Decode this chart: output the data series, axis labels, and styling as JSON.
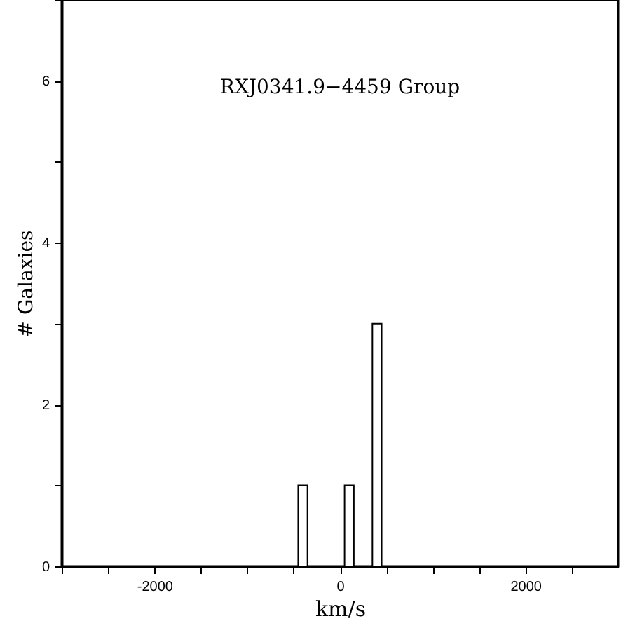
{
  "chart_data": {
    "type": "histogram",
    "title": "RXJ0341.9−4459 Group",
    "xlabel": "km/s",
    "ylabel": "# Galaxies",
    "bins": [
      -450,
      -350,
      -250,
      -150,
      -50,
      50,
      150,
      250,
      350,
      450
    ],
    "values": [
      1,
      0,
      0,
      0,
      0,
      1,
      0,
      0,
      3
    ],
    "color": "#ffffff",
    "xlim": [
      -3000,
      3000
    ],
    "xticks": [
      {
        "value": -3000,
        "label": null
      },
      {
        "value": -2500,
        "label": null
      },
      -2000,
      {
        "value": -1500,
        "label": null
      },
      {
        "value": -1000,
        "label": null
      },
      {
        "value": -500,
        "label": null
      },
      0,
      {
        "value": 500,
        "label": null
      },
      {
        "value": 1000,
        "label": null
      },
      {
        "value": 1500,
        "label": null
      },
      2000,
      {
        "value": 2500,
        "label": null
      }
    ],
    "ylim": [
      0,
      7
    ],
    "yticks": [
      0,
      {
        "value": 1,
        "label": null
      },
      2,
      {
        "value": 3,
        "label": null
      },
      4,
      {
        "value": 5,
        "label": null
      },
      6,
      {
        "value": 7,
        "label": null
      }
    ],
    "grid": false
  }
}
